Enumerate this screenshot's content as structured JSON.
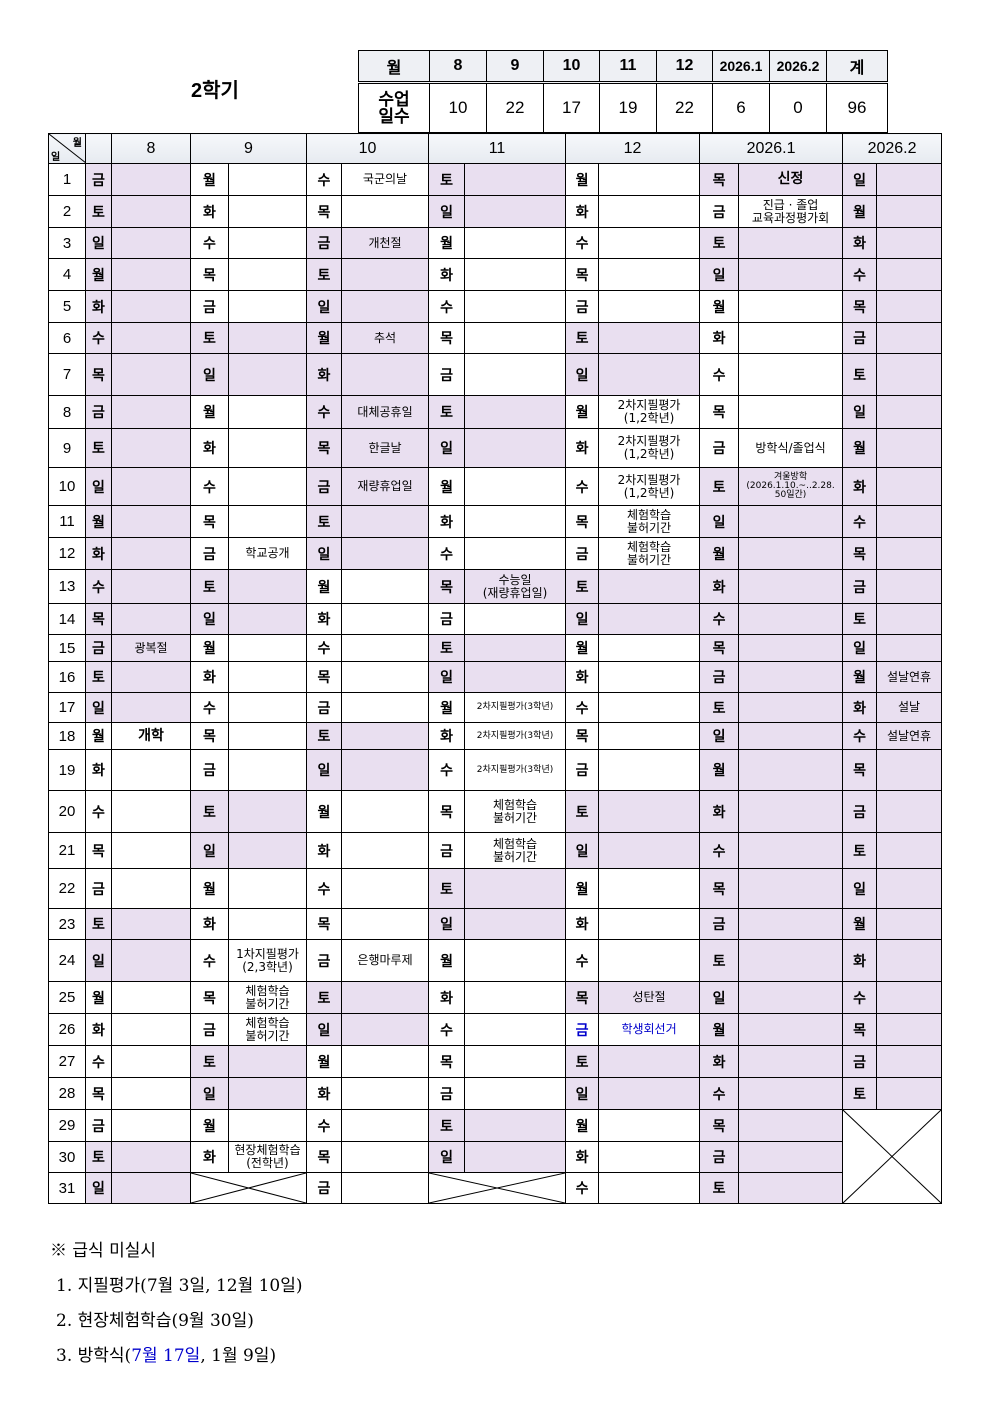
{
  "title": "2학기",
  "summary": {
    "header_label": "월",
    "row_label": "수업\n일수",
    "months": [
      "8",
      "9",
      "10",
      "11",
      "12",
      "2026.1",
      "2026.2"
    ],
    "total_label": "계",
    "days": [
      10,
      22,
      17,
      19,
      22,
      6,
      0
    ],
    "total": 96
  },
  "calendar": {
    "corner_month": "월",
    "corner_day": "일",
    "weekdays": [
      "월",
      "화",
      "수",
      "목",
      "금",
      "토",
      "일"
    ],
    "weekend": [
      "토",
      "일"
    ],
    "shade_color": "#e9dff0",
    "highlight_color": "#0000cc",
    "months": [
      {
        "label": "8",
        "days": 31,
        "start_weekday": "금",
        "shaded": [
          1,
          2,
          3,
          4,
          5,
          6,
          7,
          8,
          9,
          10,
          11,
          12,
          13,
          14,
          15,
          16,
          17
        ],
        "events": {
          "15": "광복절",
          "18": "개학"
        }
      },
      {
        "label": "9",
        "days": 30,
        "start_weekday": "월",
        "shaded": [],
        "events": {
          "12": "학교공개",
          "24": "1차지필평가\n(2,3학년)",
          "25": "체험학습\n불허기간",
          "26": "체험학습\n불허기간",
          "30": "현장체험학습\n(전학년)"
        }
      },
      {
        "label": "10",
        "days": 31,
        "start_weekday": "수",
        "shaded": [
          3,
          6,
          7,
          8,
          9,
          10
        ],
        "events": {
          "1": "국군의날",
          "3": "개천절",
          "6": "추석",
          "8": "대체공휴일",
          "9": "한글날",
          "10": "재량휴업일",
          "24": "은행마루제"
        }
      },
      {
        "label": "11",
        "days": 30,
        "start_weekday": "토",
        "shaded": [
          13
        ],
        "events": {
          "13": "수능일\n(재량휴업일)",
          "17": "2차지필평가(3학년)",
          "18": "2차지필평가(3학년)",
          "19": "2차지필평가(3학년)",
          "20": "체험학습\n불허기간",
          "21": "체험학습\n불허기간"
        }
      },
      {
        "label": "12",
        "days": 31,
        "start_weekday": "월",
        "shaded": [
          25
        ],
        "highlighted": [
          26
        ],
        "events": {
          "8": "2차지필평가\n(1,2학년)",
          "9": "2차지필평가\n(1,2학년)",
          "10": "2차지필평가\n(1,2학년)",
          "11": "체험학습\n불허기간",
          "12": "체험학습\n불허기간",
          "25": "성탄절",
          "26": "학생회선거"
        }
      },
      {
        "label": "2026.1",
        "days": 31,
        "start_weekday": "목",
        "shaded": [
          1,
          10,
          11,
          12,
          13,
          14,
          15,
          16,
          17,
          18,
          19,
          20,
          21,
          22,
          23,
          24,
          25,
          26,
          27,
          28,
          29,
          30,
          31
        ],
        "events": {
          "1": "신정",
          "2": "진급 · 졸업\n교육과정평가회",
          "9": "방학식/졸업식",
          "10": "겨울방학\n(2026.1.10.~..2.28.\n50일간)"
        }
      },
      {
        "label": "2026.2",
        "days": 28,
        "start_weekday": "일",
        "shaded": "all",
        "events": {
          "16": "설날연휴",
          "17": "설날",
          "18": "설날연휴"
        }
      }
    ]
  },
  "notes": {
    "heading": "※ 급식 미실시",
    "items": [
      {
        "prefix": "1.  지필평가(7월 3일, 12월 10일)",
        "highlight": "",
        "suffix": ""
      },
      {
        "prefix": "2.  현장체험학습(9월 30일)",
        "highlight": "",
        "suffix": ""
      },
      {
        "prefix": "3.  방학식(",
        "highlight": "7월 17일",
        "suffix": ", 1월 9일)"
      }
    ]
  }
}
